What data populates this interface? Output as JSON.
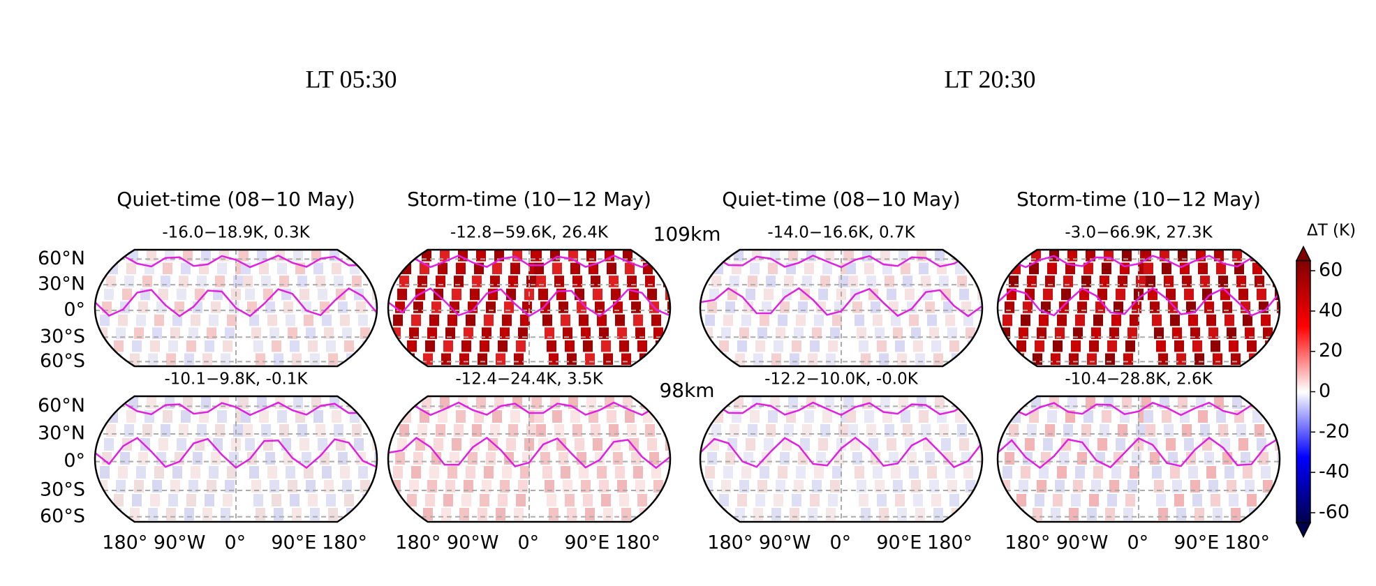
{
  "headers": [
    "LT 05:30",
    "LT 20:30"
  ],
  "columns": [
    "Quiet-time (08−10 May)",
    "Storm-time (10−12 May)",
    "Quiet-time (08−10 May)",
    "Storm-time (10−12 May)"
  ],
  "altitudes": [
    "109km",
    "98km"
  ],
  "panels": [
    [
      "-16.0−18.9K, 0.3K",
      "-12.8−59.6K, 26.4K",
      "-14.0−16.6K, 0.7K",
      "-3.0−66.9K, 27.3K"
    ],
    [
      "-10.1−9.8K, -0.1K",
      "-12.4−24.4K, 3.5K",
      "-12.2−10.0K, -0.0K",
      "-10.4−28.8K, 2.6K"
    ]
  ],
  "lat_labels": [
    "60°N",
    "30°N",
    "0°",
    "30°S",
    "60°S"
  ],
  "lon_labels": [
    "180°",
    "90°W",
    "0°",
    "90°E",
    "180°"
  ],
  "colorbar": {
    "label": "ΔT (K)",
    "lim": [
      -65,
      65
    ],
    "ticks": [
      60,
      40,
      20,
      0,
      -20,
      -40,
      -60
    ],
    "colormap": [
      "#00004c",
      "#0000ff",
      "#ffffff",
      "#ff0000",
      "#7f0000"
    ]
  }
}
